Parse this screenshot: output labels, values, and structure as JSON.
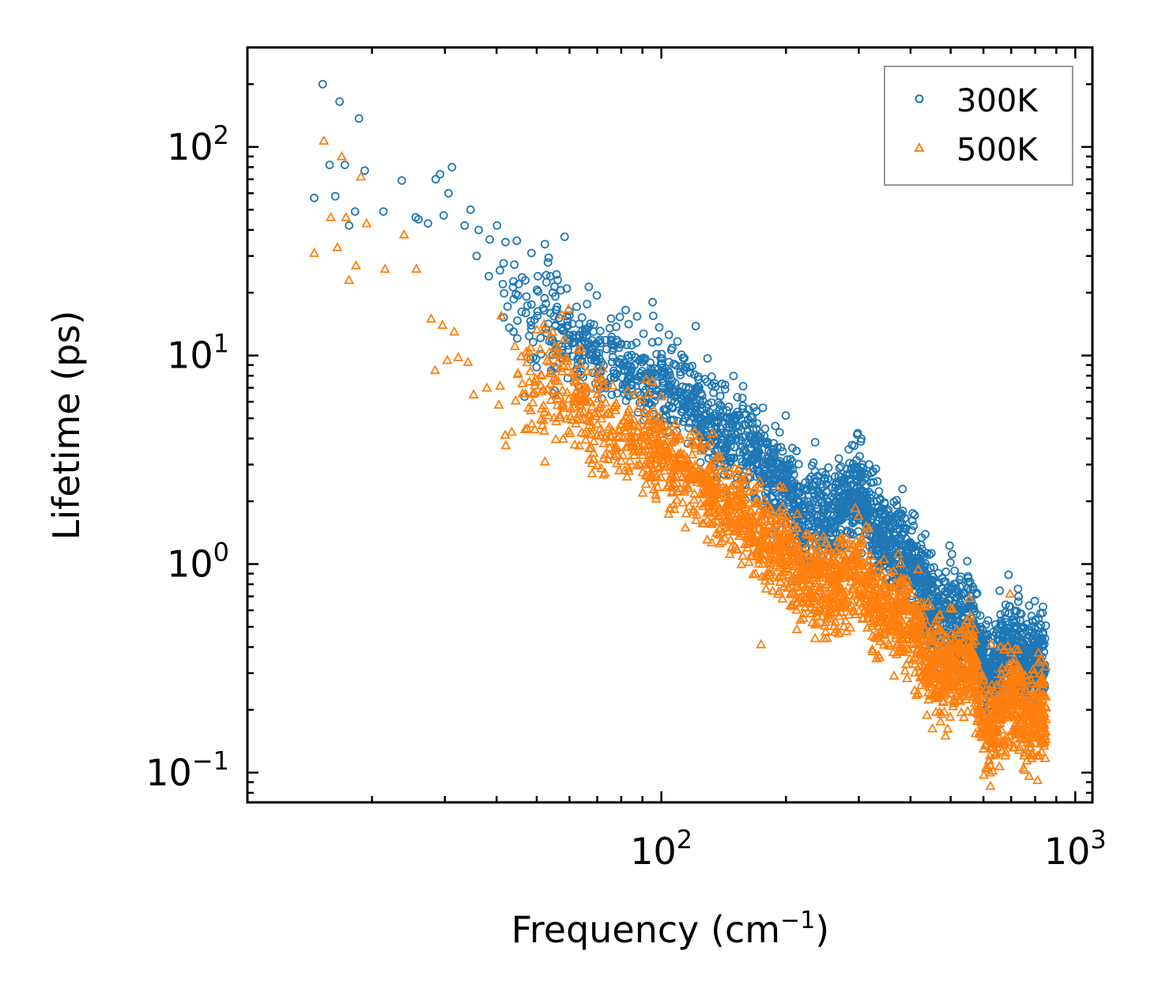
{
  "chart_data": {
    "type": "scatter",
    "title": "",
    "xlabel": "Frequency (cm",
    "xlabel_sup": "−1",
    "xlabel_close": ")",
    "ylabel": "Lifetime (ps)",
    "xscale": "log",
    "yscale": "log",
    "xlim": [
      10,
      1100
    ],
    "ylim": [
      0.072,
      300
    ],
    "x_ticks": [
      {
        "base": "10",
        "exp": "2",
        "value": 100
      },
      {
        "base": "10",
        "exp": "3",
        "value": 1000
      }
    ],
    "y_ticks": [
      {
        "base": "10",
        "exp": "2",
        "value": 100
      },
      {
        "base": "10",
        "exp": "1",
        "value": 10
      },
      {
        "base": "10",
        "exp": "0",
        "value": 1
      },
      {
        "base": "10",
        "exp": "−1",
        "value": 0.1
      }
    ],
    "legend_position": "top-right",
    "series": [
      {
        "name": "300K",
        "marker": "circle",
        "color": "#1f77b4",
        "note": "points follow a power-law decay; dense cloud sampled from these anchor values",
        "values": [
          [
            14.5,
            57
          ],
          [
            15.2,
            200
          ],
          [
            15.8,
            82
          ],
          [
            16.3,
            58
          ],
          [
            16.7,
            165
          ],
          [
            17.2,
            82
          ],
          [
            17.6,
            42
          ],
          [
            18.2,
            49
          ],
          [
            18.6,
            137
          ],
          [
            19.2,
            77
          ],
          [
            21.3,
            49
          ],
          [
            23.6,
            69
          ],
          [
            25.5,
            46
          ],
          [
            25.9,
            45
          ],
          [
            27.3,
            43
          ],
          [
            28.5,
            70
          ],
          [
            29.2,
            74
          ],
          [
            29.8,
            47
          ],
          [
            30.6,
            60
          ],
          [
            31.2,
            80
          ],
          [
            33.5,
            42
          ],
          [
            34.6,
            50
          ],
          [
            36.2,
            40
          ],
          [
            38.5,
            36
          ],
          [
            40.1,
            42
          ],
          [
            35.8,
            30
          ],
          [
            38.3,
            24
          ],
          [
            41.4,
            22
          ],
          [
            45.2,
            22
          ],
          [
            50.3,
            24
          ],
          [
            56.2,
            23
          ]
        ],
        "trend": [
          [
            40,
            20
          ],
          [
            60,
            12
          ],
          [
            80,
            9
          ],
          [
            100,
            7.5
          ],
          [
            130,
            5
          ],
          [
            160,
            3.6
          ],
          [
            200,
            2.3
          ],
          [
            215,
            1.6
          ],
          [
            260,
            1.7
          ],
          [
            300,
            2.3
          ],
          [
            330,
            1.4
          ],
          [
            400,
            1.05
          ],
          [
            460,
            0.6
          ],
          [
            550,
            0.55
          ],
          [
            620,
            0.28
          ],
          [
            700,
            0.45
          ],
          [
            760,
            0.33
          ],
          [
            850,
            0.36
          ]
        ]
      },
      {
        "name": "500K",
        "marker": "triangle",
        "color": "#ff7f0e",
        "note": "points follow a power-law decay; dense cloud sampled from these anchor values",
        "values": [
          [
            14.5,
            31
          ],
          [
            15.3,
            107
          ],
          [
            15.9,
            46
          ],
          [
            16.5,
            33
          ],
          [
            16.9,
            90
          ],
          [
            17.3,
            46
          ],
          [
            17.6,
            23
          ],
          [
            18.3,
            27
          ],
          [
            18.8,
            72
          ],
          [
            19.4,
            43
          ],
          [
            21.5,
            26
          ],
          [
            23.9,
            38
          ],
          [
            25.6,
            26
          ],
          [
            27.8,
            15
          ],
          [
            28.4,
            8.5
          ],
          [
            29.6,
            14
          ],
          [
            30.4,
            9.5
          ],
          [
            31.6,
            13
          ],
          [
            32.3,
            9.8
          ],
          [
            34.1,
            9.3
          ],
          [
            35.2,
            6.5
          ],
          [
            37.9,
            7.0
          ],
          [
            40.5,
            5.8
          ],
          [
            43.5,
            4.3
          ]
        ],
        "trend": [
          [
            40,
            9
          ],
          [
            60,
            6
          ],
          [
            80,
            4
          ],
          [
            100,
            3.5
          ],
          [
            130,
            2.3
          ],
          [
            160,
            1.6
          ],
          [
            200,
            1.1
          ],
          [
            215,
            0.9
          ],
          [
            260,
            0.75
          ],
          [
            300,
            1.0
          ],
          [
            330,
            0.6
          ],
          [
            400,
            0.55
          ],
          [
            460,
            0.3
          ],
          [
            550,
            0.35
          ],
          [
            620,
            0.15
          ],
          [
            700,
            0.25
          ],
          [
            760,
            0.17
          ],
          [
            850,
            0.2
          ]
        ]
      }
    ]
  },
  "legend": {
    "items": [
      {
        "label": "300K",
        "color": "#1f77b4",
        "marker": "circle"
      },
      {
        "label": "500K",
        "color": "#ff7f0e",
        "marker": "triangle"
      }
    ]
  }
}
